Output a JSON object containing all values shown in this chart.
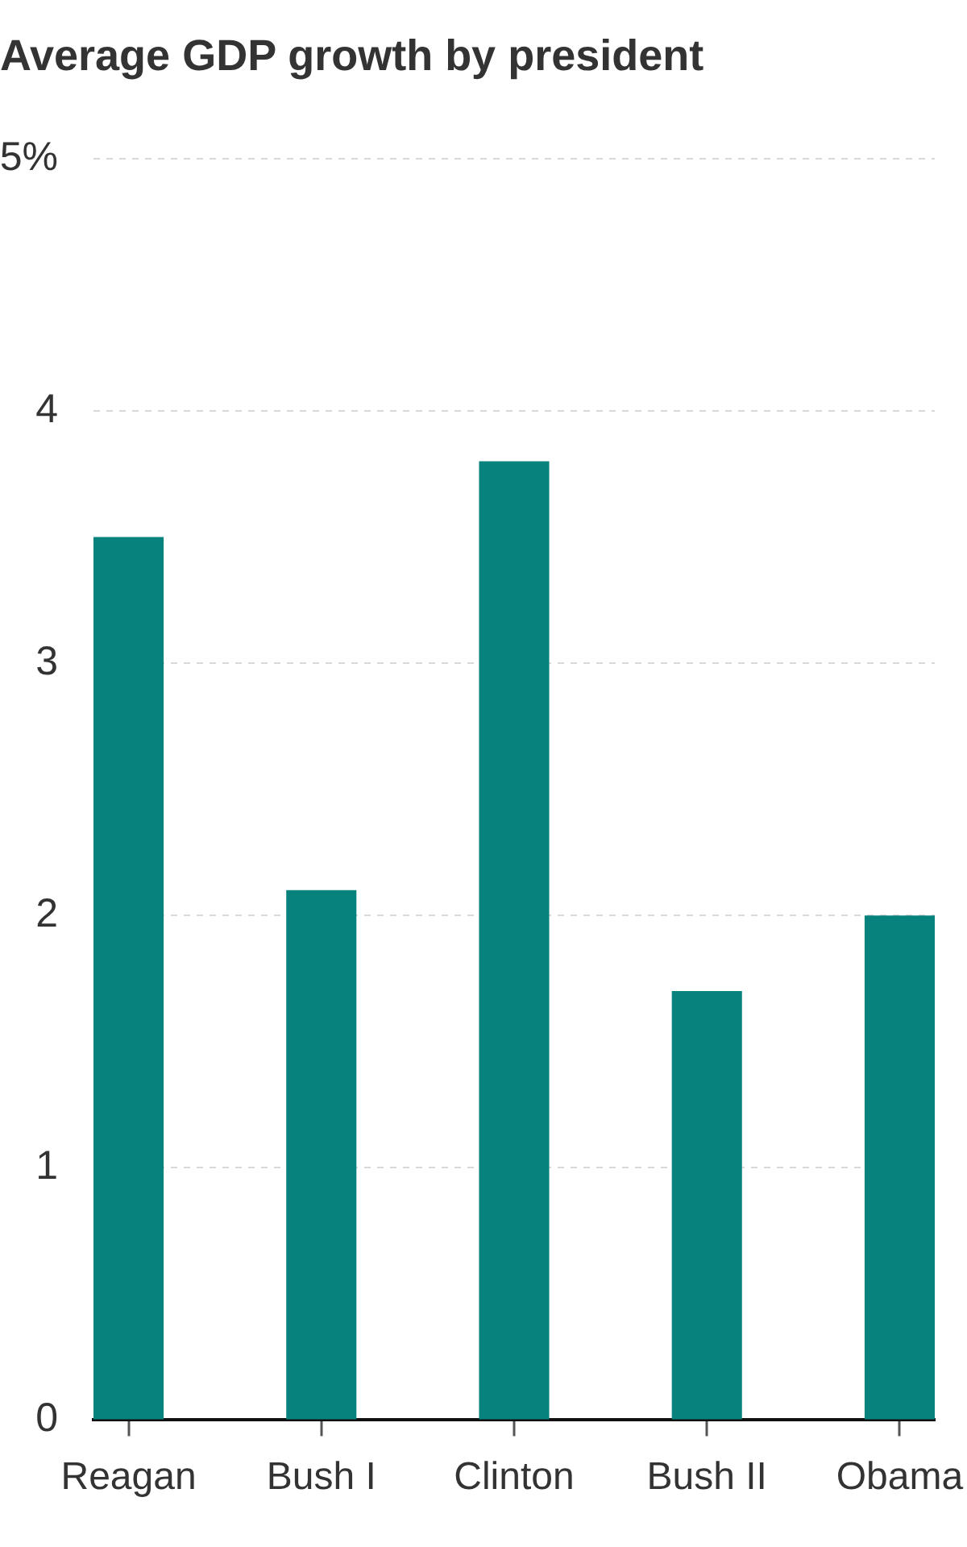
{
  "chart_data": {
    "type": "bar",
    "title": "Average GDP growth by president",
    "categories": [
      "Reagan",
      "Bush I",
      "Clinton",
      "Bush II",
      "Obama"
    ],
    "values": [
      3.5,
      2.1,
      3.8,
      1.7,
      2.0
    ],
    "color": "#07827d",
    "ylim": [
      0,
      5
    ],
    "yticks": [
      0,
      1,
      2,
      3,
      4,
      {
        "value": 5,
        "label": "5%"
      }
    ],
    "grid": "y"
  }
}
